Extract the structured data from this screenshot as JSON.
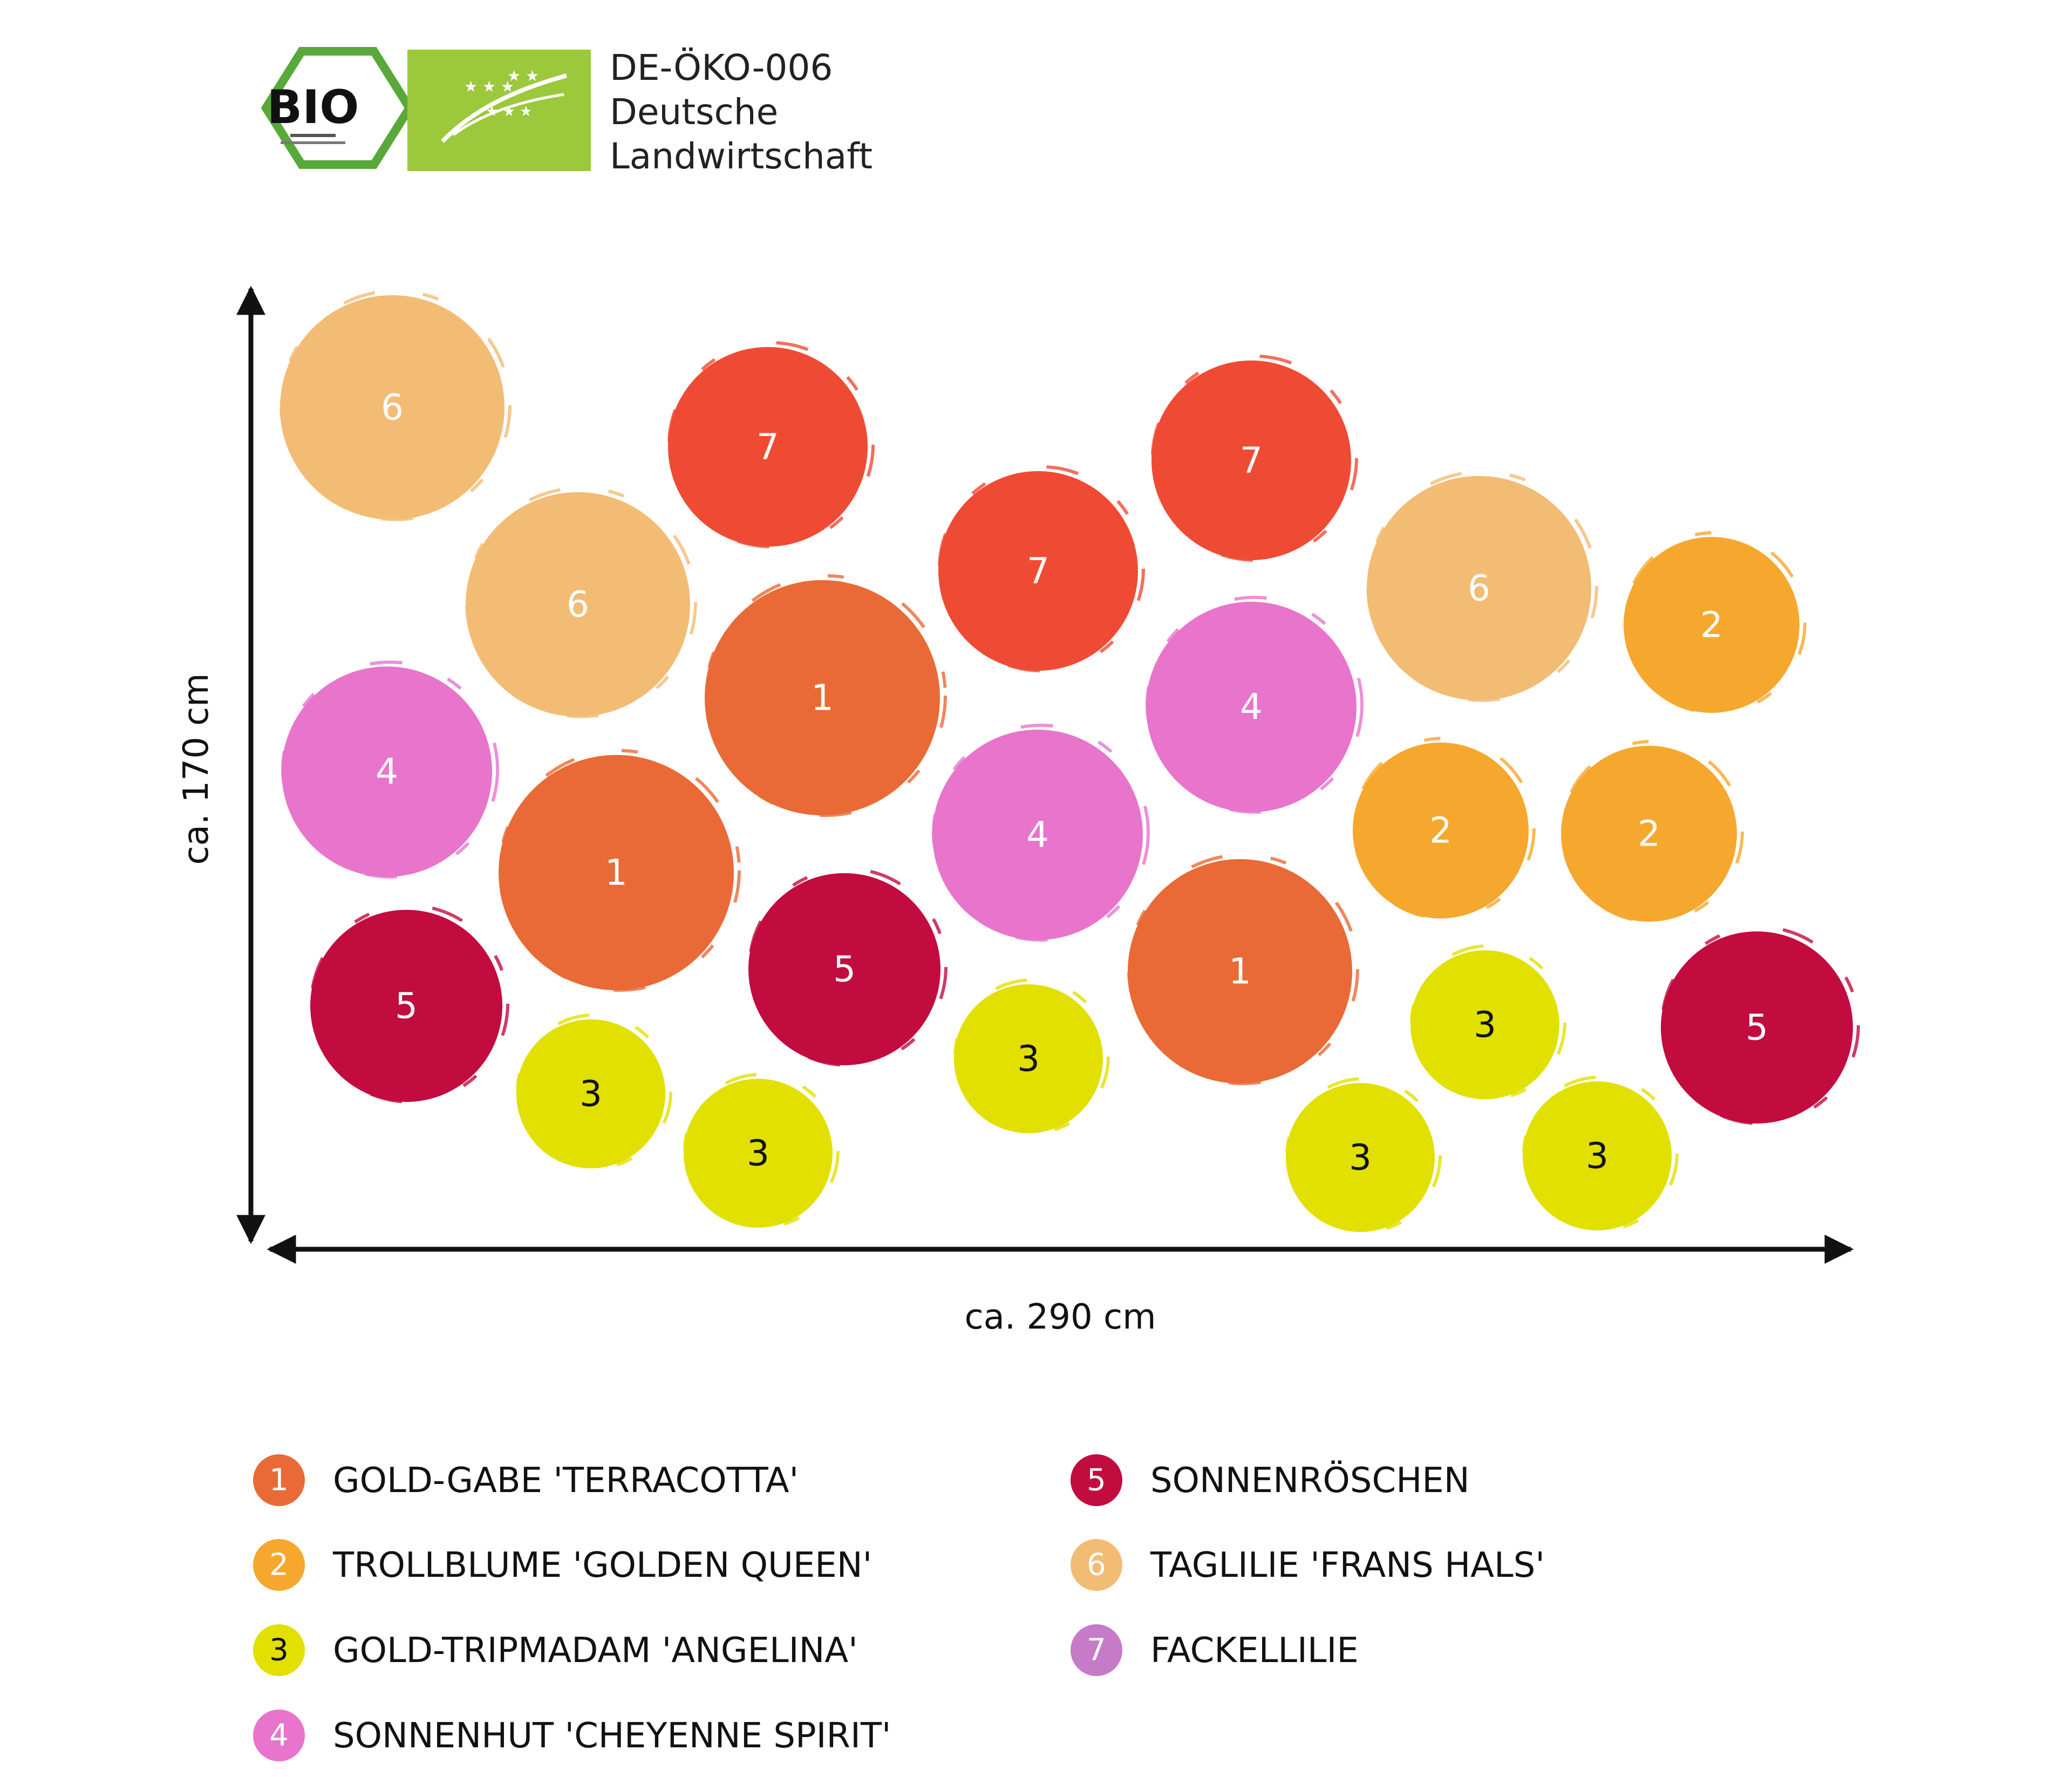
{
  "certification": {
    "bio_seal_word": "BIO",
    "line1": "DE-ÖKO-006",
    "line2": "Deutsche",
    "line3": "Landwirtschaft"
  },
  "dimensions": {
    "height_label": "ca. 170 cm",
    "width_label": "ca. 290 cm"
  },
  "colors": {
    "1": "#e96a36",
    "2": "#f6a72d",
    "3": "#e2e000",
    "4": "#e874cc",
    "5": "#c20b3f",
    "6": "#f2bc74",
    "7": "#ef4b34",
    "legend_7": "#c57bc7",
    "bio_green": "#58a83a",
    "eu_green": "#9cc83c"
  },
  "plants": [
    {
      "id": 6,
      "label": "6"
    },
    {
      "id": 7,
      "label": "7"
    },
    {
      "id": 7,
      "label": "7"
    },
    {
      "id": 6,
      "label": "6"
    },
    {
      "id": 6,
      "label": "6"
    },
    {
      "id": 7,
      "label": "7"
    },
    {
      "id": 2,
      "label": "2"
    },
    {
      "id": 1,
      "label": "1"
    },
    {
      "id": 4,
      "label": "4"
    },
    {
      "id": 4,
      "label": "4"
    },
    {
      "id": 1,
      "label": "1"
    },
    {
      "id": 4,
      "label": "4"
    },
    {
      "id": 2,
      "label": "2"
    },
    {
      "id": 2,
      "label": "2"
    },
    {
      "id": 5,
      "label": "5"
    },
    {
      "id": 5,
      "label": "5"
    },
    {
      "id": 1,
      "label": "1"
    },
    {
      "id": 3,
      "label": "3"
    },
    {
      "id": 3,
      "label": "3"
    },
    {
      "id": 5,
      "label": "5"
    },
    {
      "id": 3,
      "label": "3"
    },
    {
      "id": 3,
      "label": "3"
    },
    {
      "id": 3,
      "label": "3"
    },
    {
      "id": 3,
      "label": "3"
    }
  ],
  "legend": [
    {
      "number": "1",
      "name": "GOLD-GABE 'TERRACOTTA'",
      "color": "#e96a36"
    },
    {
      "number": "2",
      "name": "TROLLBLUME 'GOLDEN QUEEN'",
      "color": "#f6a72d"
    },
    {
      "number": "3",
      "name": "GOLD-TRIPMADAM 'ANGELINA'",
      "color": "#e2e000"
    },
    {
      "number": "4",
      "name": "SONNENHUT 'CHEYENNE SPIRIT'",
      "color": "#e874cc"
    },
    {
      "number": "5",
      "name": "SONNENRÖSCHEN",
      "color": "#c20b3f"
    },
    {
      "number": "6",
      "name": "TAGLILIE 'FRANS HALS'",
      "color": "#f2bc74"
    },
    {
      "number": "7",
      "name": "FACKELLILIE",
      "color": "#c57bc7"
    }
  ]
}
